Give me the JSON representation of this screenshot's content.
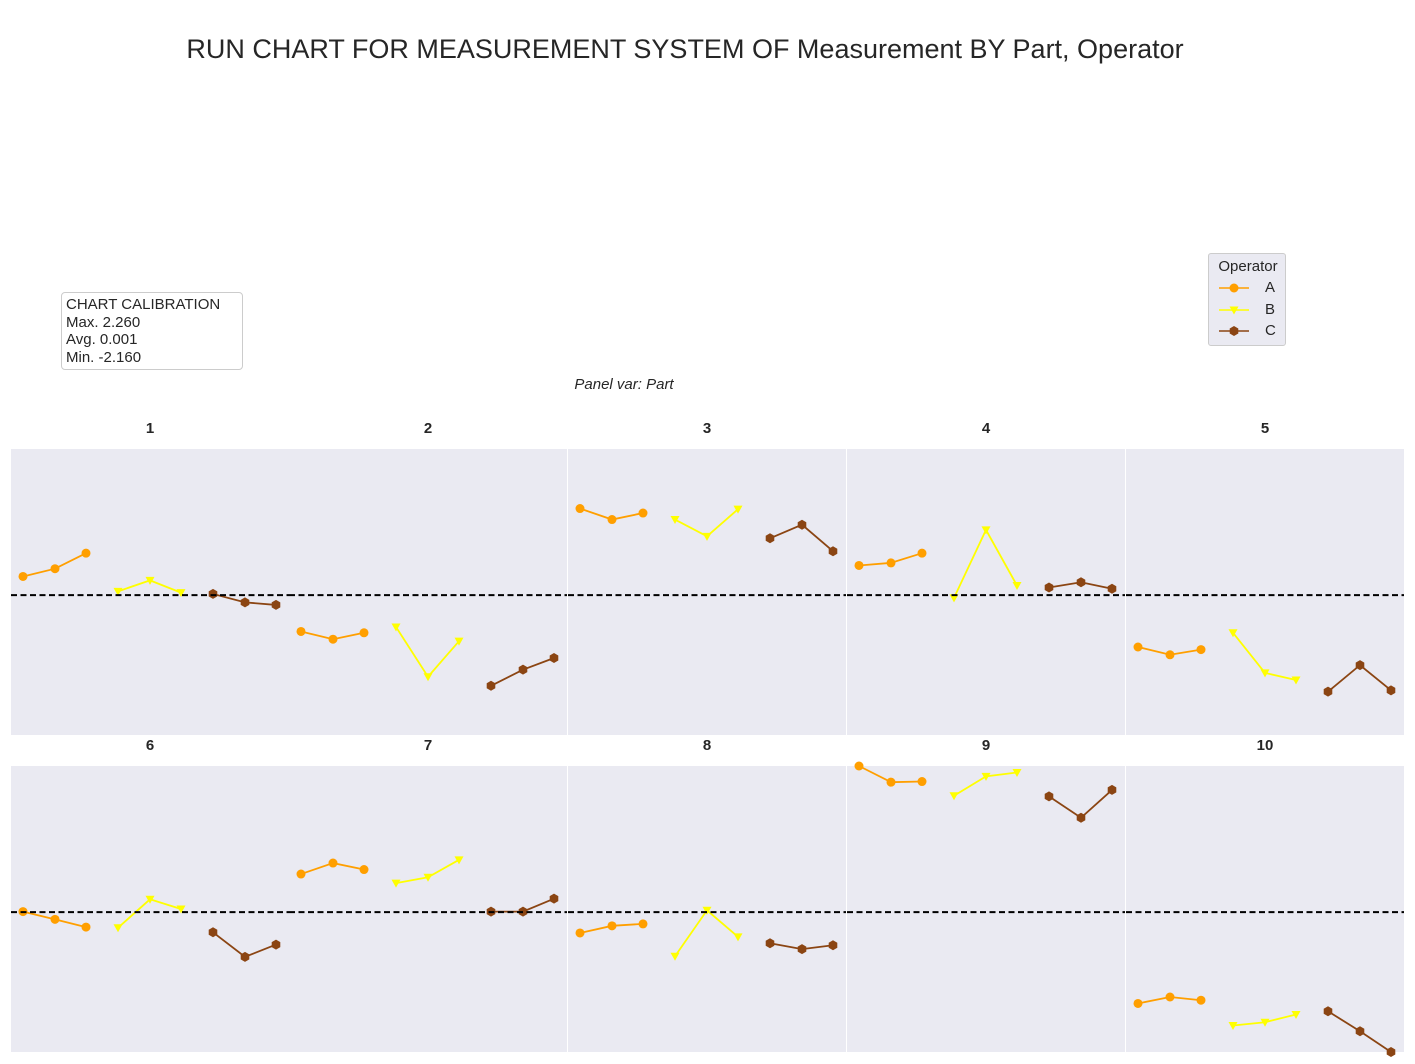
{
  "title": "RUN CHART FOR MEASUREMENT SYSTEM OF Measurement BY Part, Operator",
  "calibration": {
    "heading": "CHART CALIBRATION",
    "max_label": "Max. 2.260",
    "avg_label": "Avg. 0.001",
    "min_label": "Min. -2.160"
  },
  "panel_var_label": "Panel var: Part",
  "legend": {
    "title": "Operator",
    "items": [
      {
        "label": "A",
        "color": "#ff9f00",
        "marker": "circle"
      },
      {
        "label": "B",
        "color": "#ffff00",
        "marker": "triangle-down"
      },
      {
        "label": "C",
        "color": "#8b4513",
        "marker": "hexagon"
      }
    ]
  },
  "chart_data": {
    "type": "line",
    "panel_variable": "Part",
    "reference_line": 0.001,
    "ylim": [
      -2.16,
      2.26
    ],
    "background": "#eaeaf2",
    "panels": [
      {
        "part": "1",
        "series": [
          {
            "name": "A",
            "values": [
              0.29,
              0.41,
              0.65
            ]
          },
          {
            "name": "B",
            "values": [
              0.06,
              0.23,
              0.04
            ]
          },
          {
            "name": "C",
            "values": [
              0.02,
              -0.11,
              -0.15
            ]
          }
        ]
      },
      {
        "part": "2",
        "series": [
          {
            "name": "A",
            "values": [
              -0.56,
              -0.68,
              -0.58
            ]
          },
          {
            "name": "B",
            "values": [
              -0.49,
              -1.26,
              -0.71
            ]
          },
          {
            "name": "C",
            "values": [
              -1.4,
              -1.15,
              -0.97
            ]
          }
        ]
      },
      {
        "part": "3",
        "series": [
          {
            "name": "A",
            "values": [
              1.34,
              1.17,
              1.27
            ]
          },
          {
            "name": "B",
            "values": [
              1.17,
              0.91,
              1.33
            ]
          },
          {
            "name": "C",
            "values": [
              0.88,
              1.09,
              0.68
            ]
          }
        ]
      },
      {
        "part": "4",
        "series": [
          {
            "name": "A",
            "values": [
              0.46,
              0.5,
              0.65
            ]
          },
          {
            "name": "B",
            "values": [
              -0.04,
              1.01,
              0.15
            ]
          },
          {
            "name": "C",
            "values": [
              0.12,
              0.2,
              0.1
            ]
          }
        ]
      },
      {
        "part": "5",
        "series": [
          {
            "name": "A",
            "values": [
              -0.8,
              -0.92,
              -0.84
            ]
          },
          {
            "name": "B",
            "values": [
              -0.58,
              -1.2,
              -1.31
            ]
          },
          {
            "name": "C",
            "values": [
              -1.49,
              -1.08,
              -1.47
            ]
          }
        ]
      },
      {
        "part": "6",
        "series": [
          {
            "name": "A",
            "values": [
              0.01,
              -0.11,
              -0.23
            ]
          },
          {
            "name": "B",
            "values": [
              -0.24,
              0.2,
              0.05
            ]
          },
          {
            "name": "C",
            "values": [
              -0.31,
              -0.69,
              -0.5
            ]
          }
        ]
      },
      {
        "part": "7",
        "series": [
          {
            "name": "A",
            "values": [
              0.59,
              0.76,
              0.66
            ]
          },
          {
            "name": "B",
            "values": [
              0.45,
              0.54,
              0.81
            ]
          },
          {
            "name": "C",
            "values": [
              0.01,
              0.01,
              0.21
            ]
          }
        ]
      },
      {
        "part": "8",
        "series": [
          {
            "name": "A",
            "values": [
              -0.32,
              -0.21,
              -0.18
            ]
          },
          {
            "name": "B",
            "values": [
              -0.68,
              0.03,
              -0.38
            ]
          },
          {
            "name": "C",
            "values": [
              -0.48,
              -0.57,
              -0.51
            ]
          }
        ]
      },
      {
        "part": "9",
        "series": [
          {
            "name": "A",
            "values": [
              2.26,
              2.01,
              2.02
            ]
          },
          {
            "name": "B",
            "values": [
              1.8,
              2.1,
              2.16
            ]
          },
          {
            "name": "C",
            "values": [
              1.79,
              1.46,
              1.89
            ]
          }
        ]
      },
      {
        "part": "10",
        "series": [
          {
            "name": "A",
            "values": [
              -1.41,
              -1.31,
              -1.36
            ]
          },
          {
            "name": "B",
            "values": [
              -1.75,
              -1.7,
              -1.58
            ]
          },
          {
            "name": "C",
            "values": [
              -1.53,
              -1.84,
              -2.16
            ]
          }
        ]
      }
    ]
  }
}
